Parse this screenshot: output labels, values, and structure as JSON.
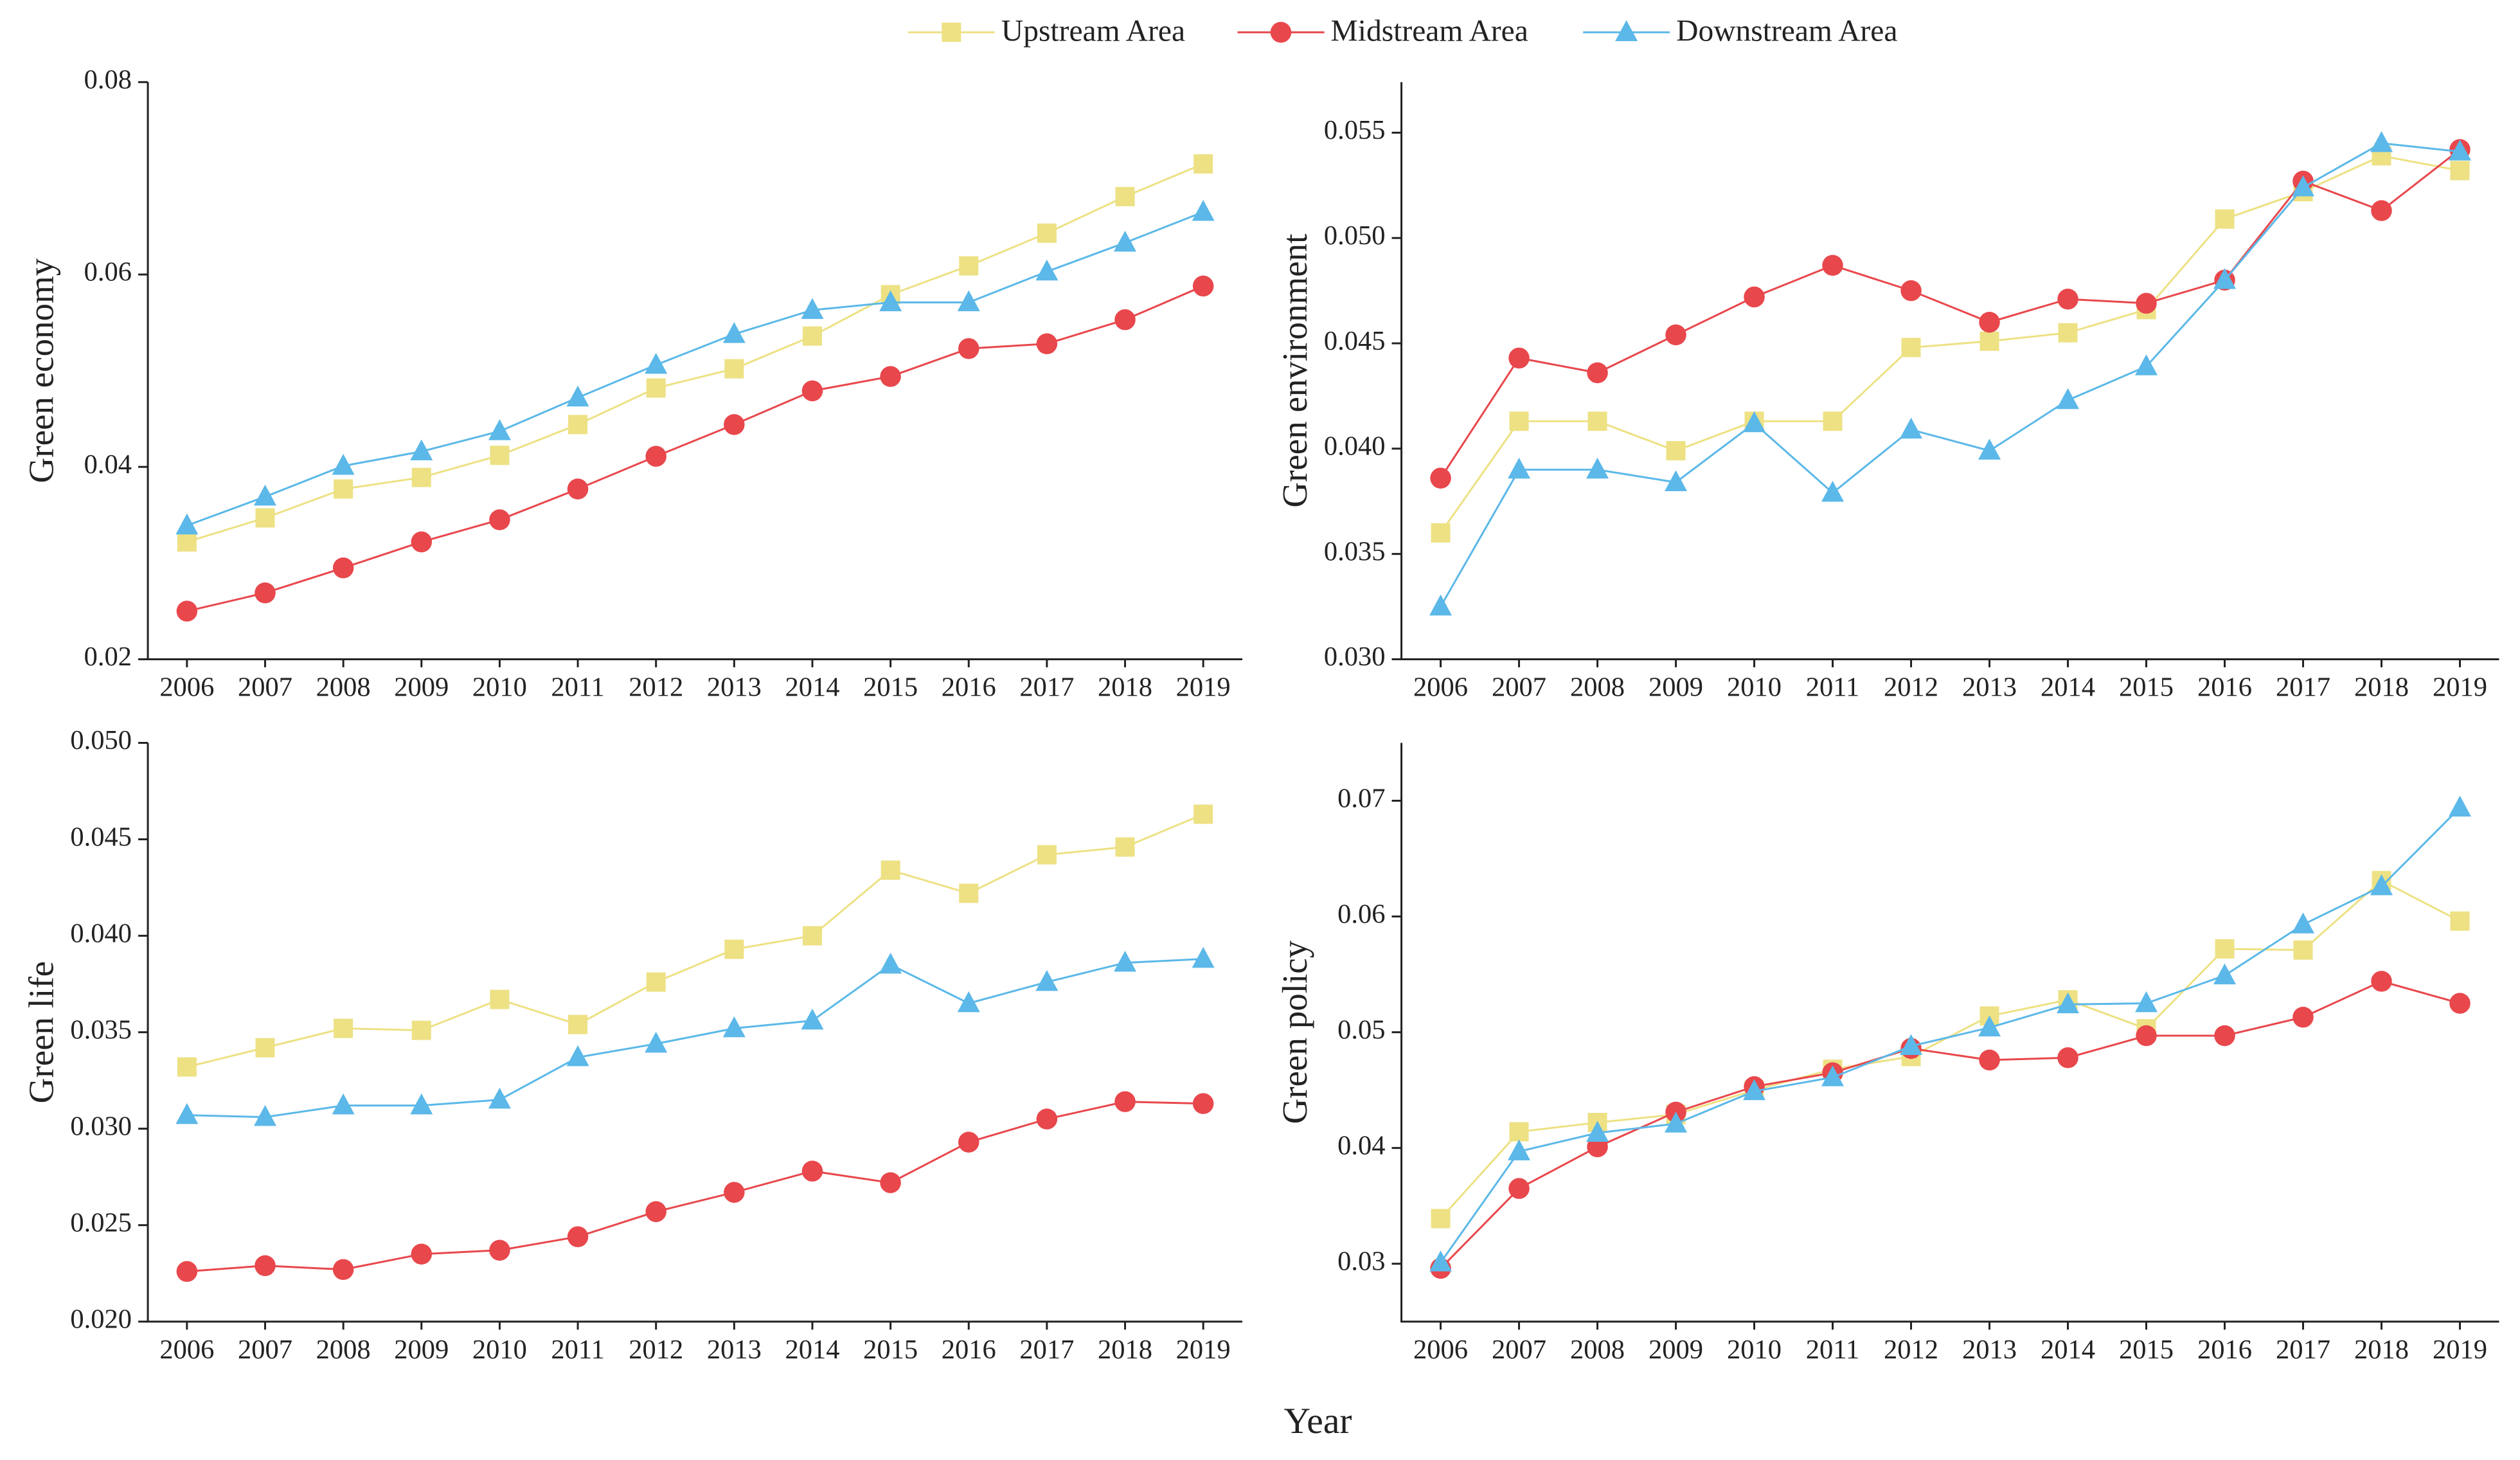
{
  "xlabel": "Year",
  "chart_data": [
    {
      "type": "line",
      "ylabel": "Green economy",
      "categories": [
        "2006",
        "2007",
        "2008",
        "2009",
        "2010",
        "2011",
        "2012",
        "2013",
        "2014",
        "2015",
        "2016",
        "2017",
        "2018",
        "2019"
      ],
      "ylim": [
        0.02,
        0.08
      ],
      "yticks": [
        0.02,
        0.04,
        0.06,
        0.08
      ],
      "series": [
        {
          "name": "Upstream Area",
          "color": "#ede184",
          "marker": "square",
          "values": [
            0.0322,
            0.0347,
            0.0377,
            0.0389,
            0.0412,
            0.0444,
            0.0482,
            0.0502,
            0.0536,
            0.0579,
            0.0609,
            0.0643,
            0.0681,
            0.0715
          ]
        },
        {
          "name": "Midstream Area",
          "color": "#e8474c",
          "marker": "circle",
          "values": [
            0.025,
            0.0269,
            0.0295,
            0.0322,
            0.0345,
            0.0377,
            0.0411,
            0.0444,
            0.0479,
            0.0494,
            0.0523,
            0.0528,
            0.0553,
            0.0588
          ]
        },
        {
          "name": "Downstream Area",
          "color": "#5bb8e8",
          "marker": "triangle",
          "values": [
            0.0339,
            0.0369,
            0.0401,
            0.0416,
            0.0437,
            0.0472,
            0.0506,
            0.0538,
            0.0563,
            0.0571,
            0.0571,
            0.0603,
            0.0633,
            0.0665
          ]
        }
      ]
    },
    {
      "type": "line",
      "ylabel": "Green environment",
      "categories": [
        "2006",
        "2007",
        "2008",
        "2009",
        "2010",
        "2011",
        "2012",
        "2013",
        "2014",
        "2015",
        "2016",
        "2017",
        "2018",
        "2019"
      ],
      "ylim": [
        0.03,
        0.0574
      ],
      "yticks": [
        {
          "value": 0.03,
          "label": "0.030"
        },
        0.035,
        {
          "value": 0.04,
          "label": "0.040"
        },
        0.045,
        {
          "value": 0.05,
          "label": "0.050"
        },
        0.055
      ],
      "series": [
        {
          "name": "Upstream Area",
          "color": "#ede184",
          "marker": "square",
          "values": [
            0.036,
            0.0413,
            0.0413,
            0.0399,
            0.0413,
            0.0413,
            0.0448,
            0.0451,
            0.0455,
            0.0466,
            0.0509,
            0.0522,
            0.0539,
            0.0532
          ]
        },
        {
          "name": "Midstream Area",
          "color": "#e8474c",
          "marker": "circle",
          "values": [
            0.0386,
            0.0443,
            0.0436,
            0.0454,
            0.0472,
            0.0487,
            0.0475,
            0.046,
            0.0471,
            0.0469,
            0.048,
            0.0527,
            0.0513,
            0.0542
          ]
        },
        {
          "name": "Downstream Area",
          "color": "#5bb8e8",
          "marker": "triangle",
          "values": [
            0.0325,
            0.039,
            0.039,
            0.0384,
            0.0412,
            0.0379,
            0.0409,
            0.0399,
            0.0423,
            0.0439,
            0.048,
            0.0524,
            0.0545,
            0.0541
          ]
        }
      ]
    },
    {
      "type": "line",
      "ylabel": "Green life",
      "categories": [
        "2006",
        "2007",
        "2008",
        "2009",
        "2010",
        "2011",
        "2012",
        "2013",
        "2014",
        "2015",
        "2016",
        "2017",
        "2018",
        "2019"
      ],
      "ylim": [
        0.02,
        0.05
      ],
      "yticks": [
        {
          "value": 0.02,
          "label": "0.020"
        },
        0.025,
        {
          "value": 0.03,
          "label": "0.030"
        },
        0.035,
        {
          "value": 0.04,
          "label": "0.040"
        },
        0.045,
        {
          "value": 0.05,
          "label": "0.050"
        }
      ],
      "series": [
        {
          "name": "Upstream Area",
          "color": "#ede184",
          "marker": "square",
          "values": [
            0.0332,
            0.0342,
            0.0352,
            0.0351,
            0.0367,
            0.0354,
            0.0376,
            0.0393,
            0.04,
            0.0434,
            0.0422,
            0.0442,
            0.0446,
            0.0463
          ]
        },
        {
          "name": "Midstream Area",
          "color": "#e8474c",
          "marker": "circle",
          "values": [
            0.0226,
            0.0229,
            0.0227,
            0.0235,
            0.0237,
            0.0244,
            0.0257,
            0.0267,
            0.0278,
            0.0272,
            0.0293,
            0.0305,
            0.0314,
            0.0313
          ]
        },
        {
          "name": "Downstream Area",
          "color": "#5bb8e8",
          "marker": "triangle",
          "values": [
            0.0307,
            0.0306,
            0.0312,
            0.0312,
            0.0315,
            0.0337,
            0.0344,
            0.0352,
            0.0356,
            0.0385,
            0.0365,
            0.0376,
            0.0386,
            0.0388
          ]
        }
      ]
    },
    {
      "type": "line",
      "ylabel": "Green policy",
      "categories": [
        "2006",
        "2007",
        "2008",
        "2009",
        "2010",
        "2011",
        "2012",
        "2013",
        "2014",
        "2015",
        "2016",
        "2017",
        "2018",
        "2019"
      ],
      "ylim": [
        0.025,
        0.075
      ],
      "yticks": [
        0.03,
        0.04,
        0.05,
        0.06,
        0.07
      ],
      "series": [
        {
          "name": "Upstream Area",
          "color": "#ede184",
          "marker": "square",
          "values": [
            0.0339,
            0.0414,
            0.0422,
            0.0429,
            0.045,
            0.0468,
            0.0479,
            0.0514,
            0.0528,
            0.0503,
            0.0572,
            0.0571,
            0.0631,
            0.0596
          ]
        },
        {
          "name": "Midstream Area",
          "color": "#e8474c",
          "marker": "circle",
          "values": [
            0.0296,
            0.0365,
            0.0401,
            0.0431,
            0.0453,
            0.0465,
            0.0486,
            0.0476,
            0.0478,
            0.0497,
            0.0497,
            0.0513,
            0.0544,
            0.0525
          ]
        },
        {
          "name": "Downstream Area",
          "color": "#5bb8e8",
          "marker": "triangle",
          "values": [
            0.0301,
            0.0397,
            0.0413,
            0.0421,
            0.0449,
            0.0461,
            0.0488,
            0.0504,
            0.0524,
            0.0525,
            0.0549,
            0.0593,
            0.0626,
            0.0694
          ]
        }
      ]
    }
  ]
}
